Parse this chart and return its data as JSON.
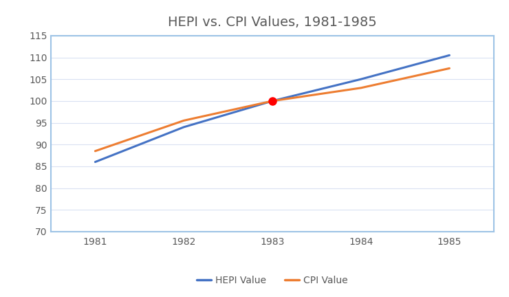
{
  "title": "HEPI vs. CPI Values, 1981-1985",
  "x": [
    1981,
    1982,
    1983,
    1984,
    1985
  ],
  "hepi": [
    86.0,
    94.0,
    100.0,
    105.0,
    110.5
  ],
  "cpi": [
    88.5,
    95.5,
    100.0,
    103.0,
    107.5
  ],
  "hepi_label": "HEPI Value",
  "cpi_label": "CPI Value",
  "hepi_color": "#4472C4",
  "cpi_color": "#ED7D31",
  "highlight_x": 1983,
  "highlight_y": 100,
  "highlight_color": "#FF0000",
  "ylim": [
    70,
    115
  ],
  "yticks": [
    70,
    75,
    80,
    85,
    90,
    95,
    100,
    105,
    110,
    115
  ],
  "xlim": [
    1980.5,
    1985.5
  ],
  "xticks": [
    1981,
    1982,
    1983,
    1984,
    1985
  ],
  "line_width": 2.2,
  "grid_color": "#D9E1F2",
  "background_color": "#FFFFFF",
  "plot_bg_color": "#FFFFFF",
  "title_fontsize": 14,
  "tick_fontsize": 10,
  "legend_fontsize": 10,
  "title_color": "#595959",
  "tick_color": "#595959",
  "spine_color": "#9DC3E6",
  "left_spine_color": "#9DC3E6"
}
